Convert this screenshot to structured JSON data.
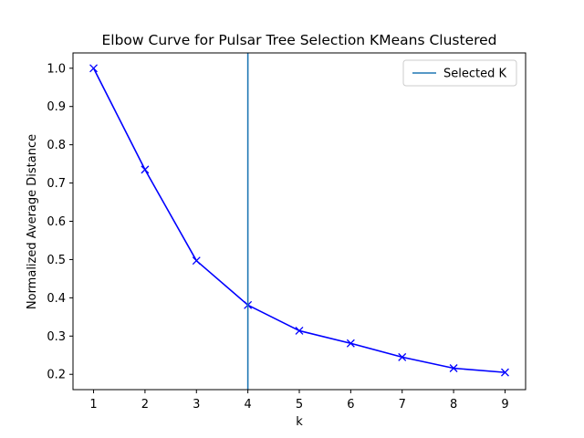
{
  "chart_data": {
    "type": "line",
    "title": "Elbow Curve for Pulsar Tree Selection KMeans Clustered",
    "xlabel": "k",
    "ylabel": "Normalized Average Distance",
    "x": [
      1,
      2,
      3,
      4,
      5,
      6,
      7,
      8,
      9
    ],
    "series": [
      {
        "values": [
          1.0,
          0.735,
          0.497,
          0.381,
          0.314,
          0.281,
          0.245,
          0.216,
          0.205
        ],
        "color": "#0000ff",
        "marker": "x"
      }
    ],
    "xlim": [
      0.6,
      9.4
    ],
    "ylim": [
      0.16,
      1.04
    ],
    "xticks": [
      1,
      2,
      3,
      4,
      5,
      6,
      7,
      8,
      9
    ],
    "yticks": [
      0.2,
      0.3,
      0.4,
      0.5,
      0.6,
      0.7,
      0.8,
      0.9,
      1.0
    ],
    "ytick_labels": [
      "0.2",
      "0.3",
      "0.4",
      "0.5",
      "0.6",
      "0.7",
      "0.8",
      "0.9",
      "1.0"
    ],
    "vline": {
      "x": 4,
      "label": "Selected K",
      "color": "#1f77b4"
    },
    "grid": false,
    "legend_position": "top-right"
  }
}
